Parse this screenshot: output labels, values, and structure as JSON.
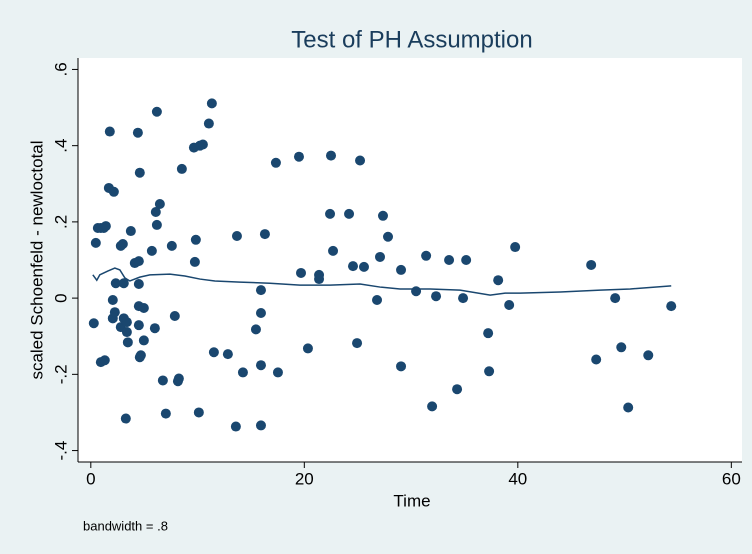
{
  "chart_data": {
    "type": "scatter",
    "title": "Test of PH Assumption",
    "xlabel": "Time",
    "ylabel": "scaled Schoenfeld - newloctotal",
    "note": "bandwidth = .8",
    "xlim": [
      -1.2,
      61
    ],
    "ylim": [
      -0.43,
      0.63
    ],
    "xticks": [
      0,
      20,
      40,
      60
    ],
    "yticks": [
      {
        "value": -0.4,
        "label": "-.4"
      },
      {
        "value": -0.2,
        "label": "-.2"
      },
      0,
      {
        "value": 0.2,
        "label": ".2"
      },
      {
        "value": 0.4,
        "label": ".4"
      },
      {
        "value": 0.6,
        "label": ".6"
      }
    ],
    "grid": false,
    "series": [
      {
        "type": "scatter",
        "color": "#1a476f",
        "x": [
          0.28,
          0.47,
          0.66,
          0.94,
          1.22,
          1.41,
          0.94,
          1.31,
          1.78,
          1.69,
          2.16,
          2.06,
          2.06,
          2.25,
          2.34,
          2.81,
          3.0,
          2.81,
          3.09,
          3.09,
          3.38,
          3.38,
          3.47,
          3.28,
          3.75,
          4.12,
          4.5,
          4.41,
          4.59,
          4.5,
          4.5,
          4.5,
          4.59,
          4.69,
          4.97,
          4.97,
          5.72,
          6.0,
          6.09,
          6.19,
          6.19,
          6.47,
          6.75,
          7.03,
          7.59,
          7.87,
          8.16,
          8.25,
          8.53,
          9.66,
          9.75,
          9.84,
          10.22,
          10.5,
          10.12,
          11.06,
          11.34,
          11.53,
          12.84,
          13.59,
          13.69,
          14.25,
          15.47,
          15.94,
          15.94,
          15.94,
          15.94,
          16.31,
          17.34,
          17.53,
          19.5,
          19.69,
          20.34,
          21.38,
          21.38,
          22.5,
          22.69,
          22.41,
          24.19,
          24.56,
          24.94,
          25.22,
          25.59,
          26.81,
          27.09,
          27.37,
          27.84,
          29.06,
          29.06,
          30.47,
          31.41,
          31.97,
          32.34,
          33.56,
          34.31,
          34.87,
          35.16,
          37.22,
          37.31,
          38.16,
          39.19,
          39.75,
          46.87,
          47.34,
          49.12,
          49.69,
          50.34,
          52.22,
          54.37
        ],
        "y": [
          -0.066,
          0.145,
          0.184,
          0.184,
          0.184,
          0.189,
          -0.168,
          -0.163,
          0.437,
          0.289,
          0.279,
          -0.005,
          -0.053,
          -0.037,
          0.039,
          0.137,
          0.142,
          -0.076,
          -0.053,
          0.039,
          -0.089,
          -0.063,
          -0.116,
          -0.316,
          0.176,
          0.092,
          0.097,
          0.434,
          0.329,
          0.037,
          -0.021,
          -0.071,
          -0.155,
          -0.15,
          -0.111,
          -0.026,
          0.124,
          -0.079,
          0.226,
          0.489,
          0.192,
          0.247,
          -0.216,
          -0.303,
          0.137,
          -0.047,
          -0.218,
          -0.211,
          0.339,
          0.395,
          0.095,
          0.153,
          0.4,
          0.403,
          -0.3,
          0.458,
          0.511,
          -0.142,
          -0.147,
          -0.337,
          0.163,
          -0.195,
          -0.082,
          -0.039,
          -0.176,
          0.021,
          -0.334,
          0.168,
          0.355,
          -0.195,
          0.371,
          0.066,
          -0.132,
          0.061,
          0.05,
          0.374,
          0.124,
          0.221,
          0.221,
          0.084,
          -0.118,
          0.361,
          0.082,
          -0.005,
          0.108,
          0.216,
          0.161,
          0.074,
          -0.179,
          0.018,
          0.111,
          -0.284,
          0.005,
          0.1,
          -0.239,
          0.0,
          0.1,
          -0.092,
          -0.192,
          0.047,
          -0.018,
          0.134,
          0.087,
          -0.161,
          0.0,
          -0.129,
          -0.287,
          -0.15,
          -0.021
        ]
      },
      {
        "type": "line",
        "color": "#1a476f",
        "x": [
          0.19,
          0.56,
          0.84,
          1.59,
          2.25,
          2.72,
          3.19,
          3.66,
          4.59,
          5.53,
          7.41,
          8.81,
          10.22,
          11.62,
          13.97,
          16.78,
          19.59,
          22.41,
          25.22,
          27.09,
          28.97,
          31.78,
          34.59,
          37.41,
          38.81,
          40.22,
          43.97,
          47.72,
          50.53,
          54.37
        ],
        "y": [
          0.061,
          0.047,
          0.061,
          0.071,
          0.079,
          0.074,
          0.053,
          0.045,
          0.055,
          0.061,
          0.063,
          0.058,
          0.05,
          0.045,
          0.042,
          0.039,
          0.034,
          0.034,
          0.037,
          0.029,
          0.024,
          0.024,
          0.021,
          0.008,
          0.013,
          0.013,
          0.016,
          0.021,
          0.024,
          0.032
        ]
      }
    ]
  }
}
